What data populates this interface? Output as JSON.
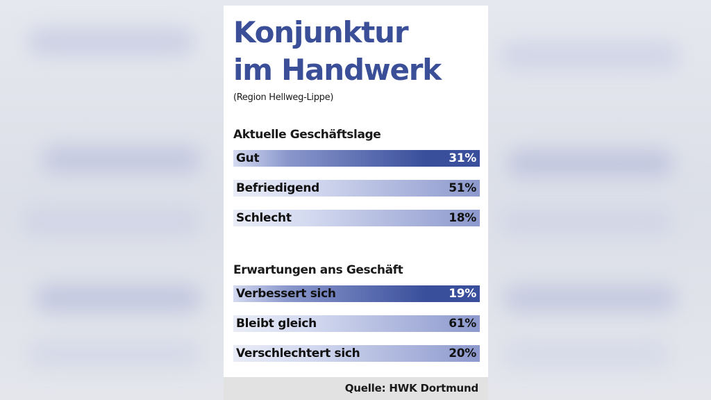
{
  "chart_data": {
    "type": "bar",
    "title": "Konjunktur im Handwerk",
    "title_lines": [
      "Konjunktur",
      "im Handwerk"
    ],
    "subtitle": "(Region Hellweg-Lippe)",
    "source": "Quelle: HWK Dortmund",
    "colors": {
      "bar_dark": "#3a4f9c",
      "bar_light": "#d4daf0",
      "title": "#3a4f98"
    },
    "groups": [
      {
        "name": "Aktuelle Geschäftslage",
        "categories": [
          "Gut",
          "Befriedigend",
          "Schlecht"
        ],
        "values": [
          31,
          51,
          18
        ],
        "labels": [
          "31%",
          "51%",
          "18%"
        ]
      },
      {
        "name": "Erwartungen ans Geschäft",
        "categories": [
          "Verbessert sich",
          "Bleibt gleich",
          "Verschlechtert sich"
        ],
        "values": [
          19,
          61,
          20
        ],
        "labels": [
          "19%",
          "61%",
          "20%"
        ]
      }
    ]
  }
}
